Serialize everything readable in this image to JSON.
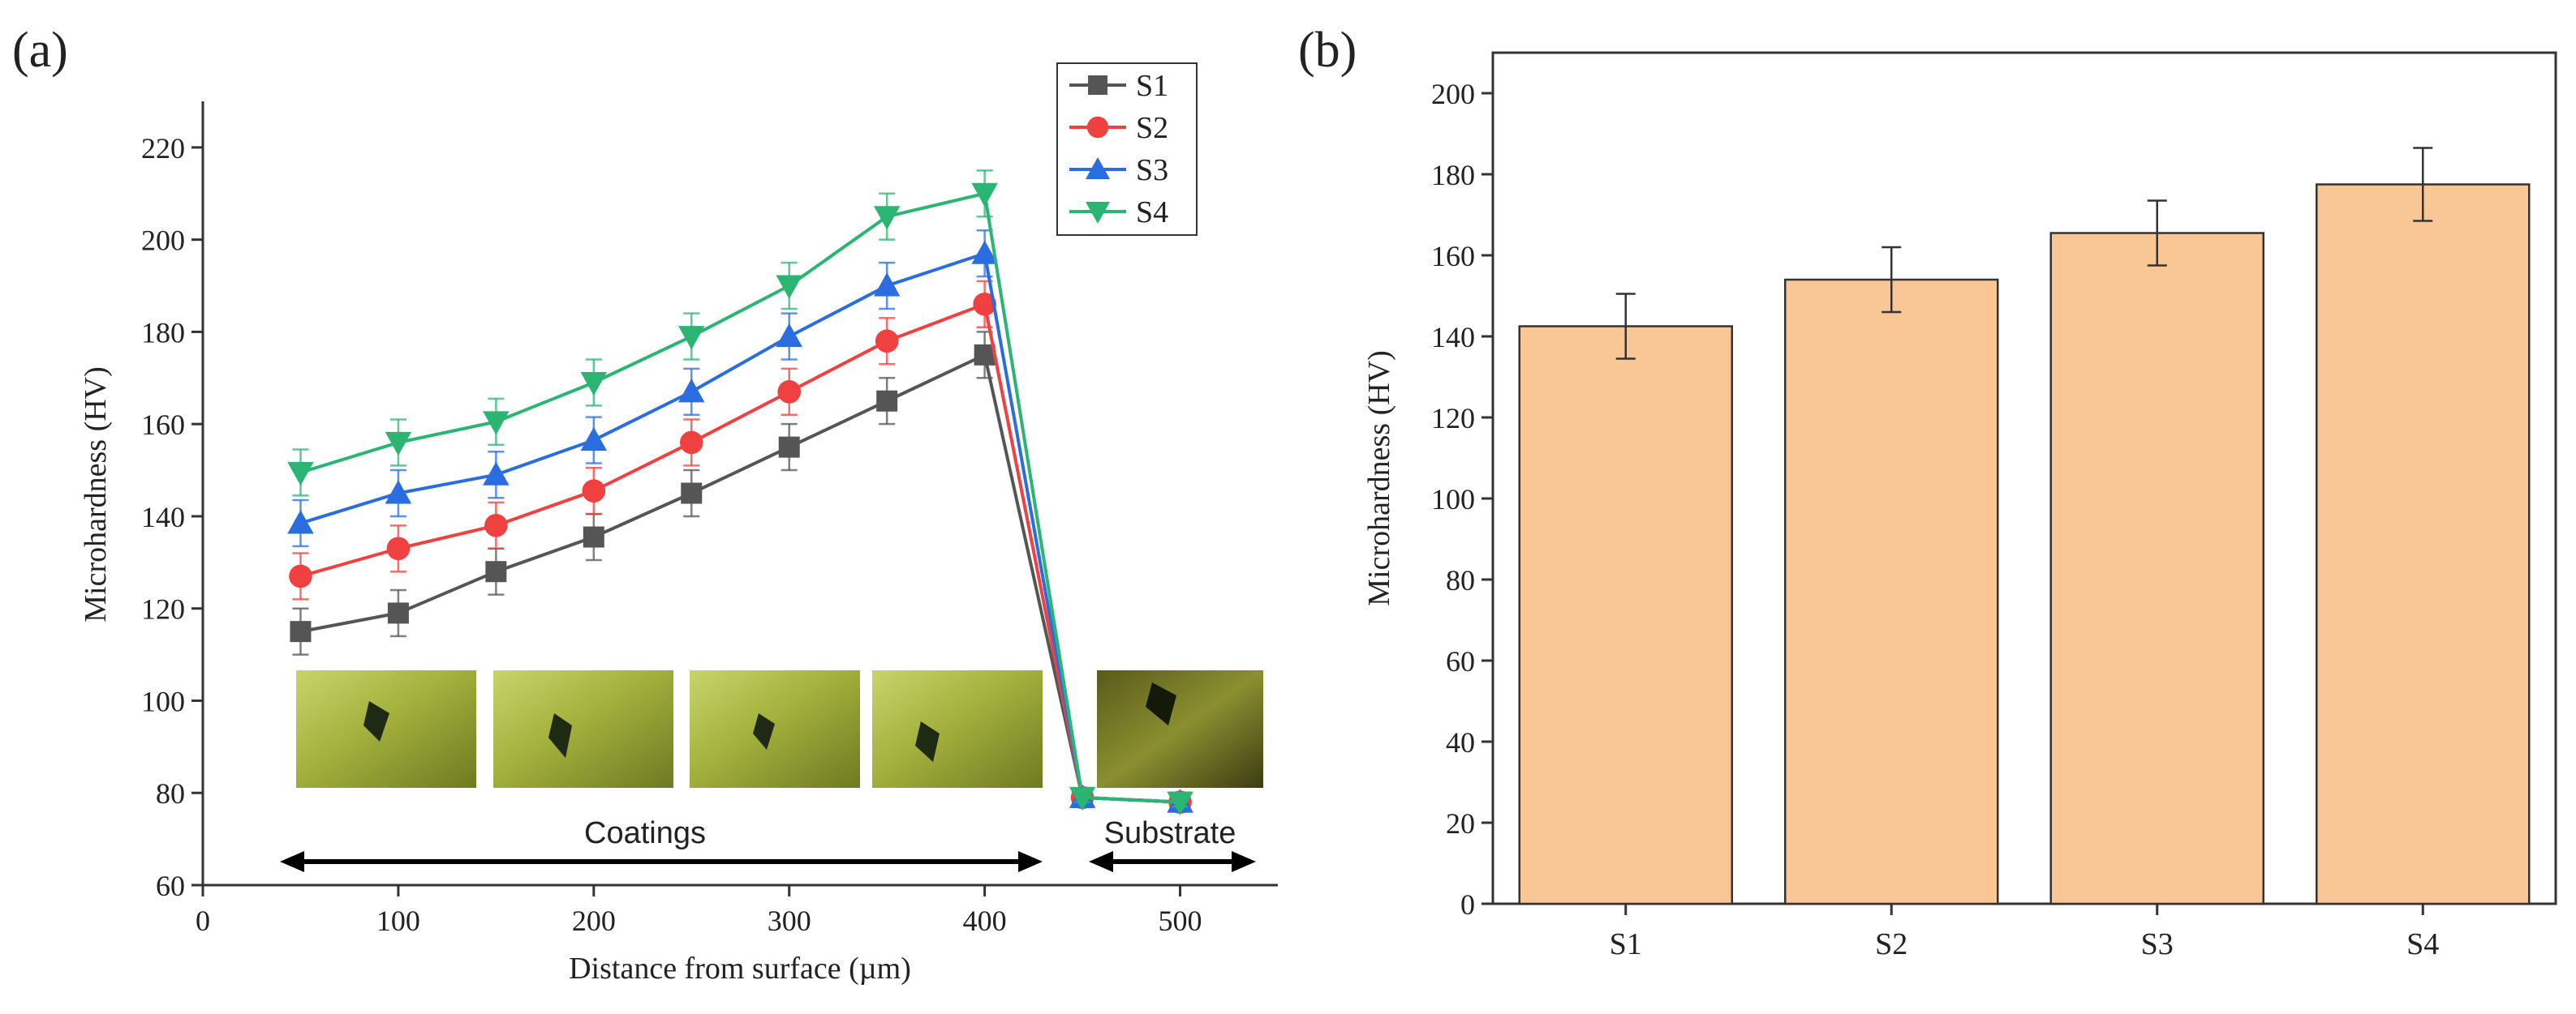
{
  "panel_labels": {
    "a": "(a)",
    "b": "(b)"
  },
  "chart_data": [
    {
      "type": "line",
      "xlabel": "Distance from surface (µm)",
      "ylabel": "Microhardness (HV)",
      "xlim": [
        0,
        550
      ],
      "ylim": [
        60,
        230
      ],
      "xticks": [
        0,
        100,
        200,
        300,
        400,
        500
      ],
      "yticks": [
        60,
        80,
        100,
        120,
        140,
        160,
        180,
        200,
        220
      ],
      "x": [
        50,
        100,
        150,
        200,
        250,
        300,
        350,
        400,
        450,
        500
      ],
      "series": [
        {
          "name": "S1",
          "color": "#555555",
          "marker": "square",
          "values": [
            115,
            119,
            128,
            135.5,
            145,
            155,
            165,
            175,
            79,
            78
          ],
          "errors": [
            5,
            5,
            5,
            5,
            5,
            5,
            5,
            5,
            1,
            1
          ]
        },
        {
          "name": "S2",
          "color": "#f04040",
          "marker": "circle",
          "values": [
            127,
            133,
            138,
            145.5,
            156,
            167,
            178,
            186,
            79,
            78
          ],
          "errors": [
            5,
            5,
            5,
            5,
            5,
            5,
            5,
            5,
            1,
            1
          ]
        },
        {
          "name": "S3",
          "color": "#2a6de0",
          "marker": "triangle-up",
          "values": [
            138.5,
            145,
            149,
            156.5,
            167,
            179,
            190,
            197,
            79,
            78
          ],
          "errors": [
            5,
            5,
            5,
            5,
            5,
            5,
            5,
            5,
            1,
            1
          ]
        },
        {
          "name": "S4",
          "color": "#2bb573",
          "marker": "triangle-down",
          "values": [
            149.5,
            156,
            160.5,
            169,
            179,
            190,
            205,
            210,
            79,
            78
          ],
          "errors": [
            5,
            5,
            5,
            5,
            5,
            5,
            5,
            5,
            1,
            1
          ]
        }
      ],
      "legend_position": "top-right",
      "annotations": {
        "coatings": "Coatings",
        "substrate": "Substrate"
      }
    },
    {
      "type": "bar",
      "categories": [
        "S1",
        "S2",
        "S3",
        "S4"
      ],
      "values": [
        142.5,
        154,
        165.5,
        177.5
      ],
      "errors": [
        8,
        8,
        8,
        9
      ],
      "ylabel": "Microhardness (HV)",
      "xlabel": "",
      "ylim": [
        0,
        210
      ],
      "yticks": [
        0,
        20,
        40,
        60,
        80,
        100,
        120,
        140,
        160,
        180,
        200
      ],
      "bar_color": "#f9c696"
    }
  ]
}
